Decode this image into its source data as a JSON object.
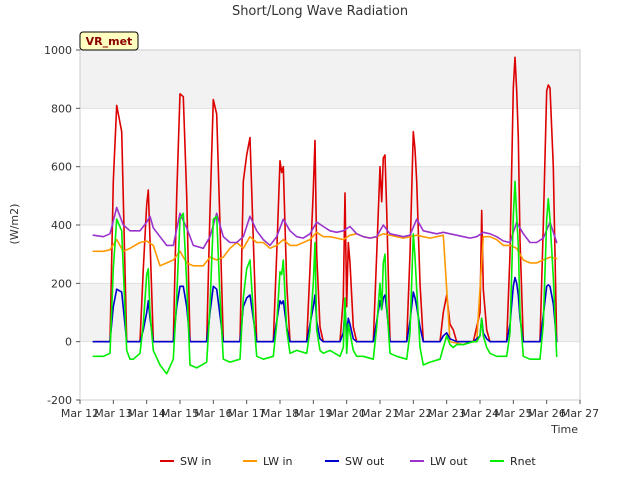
{
  "chart_data": {
    "type": "line",
    "title": "Short/Long Wave Radiation",
    "xlabel": "Time",
    "ylabel": "(W/m2)",
    "station_badge": "VR_met",
    "ylim": [
      -200,
      1000
    ],
    "yticks": [
      -200,
      0,
      200,
      400,
      600,
      800,
      1000
    ],
    "xlim": [
      12,
      27
    ],
    "xticks": [
      12,
      13,
      14,
      15,
      16,
      17,
      18,
      19,
      20,
      21,
      22,
      23,
      24,
      25,
      26,
      27
    ],
    "xtick_labels": [
      "Mar 12",
      "Mar 13",
      "Mar 14",
      "Mar 15",
      "Mar 16",
      "Mar 17",
      "Mar 18",
      "Mar 19",
      "Mar 20",
      "Mar 21",
      "Mar 22",
      "Mar 23",
      "Mar 24",
      "Mar 25",
      "Mar 26",
      "Mar 27"
    ],
    "grid": "horizontal bands",
    "legend_position": "bottom",
    "series": [
      {
        "name": "SW in",
        "color": "#dd0000",
        "x": [
          12.4,
          12.9,
          13.0,
          13.1,
          13.25,
          13.4,
          13.5,
          13.6,
          13.8,
          13.9,
          14.0,
          14.05,
          14.1,
          14.2,
          14.3,
          14.5,
          14.8,
          14.9,
          15.0,
          15.1,
          15.2,
          15.3,
          15.5,
          15.8,
          15.9,
          16.0,
          16.1,
          16.2,
          16.3,
          16.5,
          16.8,
          16.9,
          17.0,
          17.1,
          17.2,
          17.3,
          17.5,
          17.8,
          17.9,
          18.0,
          18.05,
          18.1,
          18.2,
          18.3,
          18.5,
          18.8,
          18.9,
          19.0,
          19.05,
          19.1,
          19.2,
          19.3,
          19.5,
          19.8,
          19.9,
          19.95,
          20.0,
          20.05,
          20.1,
          20.2,
          20.3,
          20.5,
          20.8,
          20.9,
          21.0,
          21.05,
          21.1,
          21.15,
          21.2,
          21.3,
          21.5,
          21.8,
          21.9,
          22.0,
          22.05,
          22.1,
          22.2,
          22.3,
          22.5,
          22.8,
          22.9,
          23.0,
          23.1,
          23.2,
          23.3,
          23.5,
          23.8,
          23.9,
          24.0,
          24.05,
          24.1,
          24.2,
          24.3,
          24.5,
          24.8,
          24.9,
          25.0,
          25.05,
          25.1,
          25.15,
          25.2,
          25.3,
          25.5,
          25.8,
          25.9,
          26.0,
          26.05,
          26.1,
          26.2,
          26.3
        ],
        "values": [
          0,
          0,
          550,
          810,
          720,
          0,
          0,
          0,
          0,
          250,
          470,
          520,
          350,
          0,
          0,
          0,
          0,
          500,
          850,
          840,
          500,
          0,
          0,
          0,
          450,
          830,
          780,
          400,
          0,
          0,
          0,
          550,
          640,
          700,
          350,
          0,
          0,
          0,
          300,
          620,
          580,
          600,
          200,
          0,
          0,
          0,
          250,
          520,
          690,
          300,
          50,
          0,
          0,
          0,
          150,
          510,
          120,
          340,
          270,
          50,
          0,
          0,
          0,
          300,
          600,
          480,
          630,
          640,
          450,
          0,
          0,
          0,
          300,
          720,
          660,
          550,
          200,
          0,
          0,
          0,
          100,
          160,
          60,
          40,
          0,
          0,
          0,
          50,
          100,
          450,
          180,
          40,
          0,
          0,
          0,
          300,
          870,
          975,
          860,
          700,
          350,
          0,
          0,
          0,
          400,
          860,
          880,
          870,
          600,
          0
        ]
      },
      {
        "name": "LW in",
        "color": "#ff9900",
        "x": [
          12.4,
          12.7,
          12.9,
          13.1,
          13.3,
          13.5,
          13.8,
          14.0,
          14.2,
          14.4,
          14.6,
          14.8,
          15.0,
          15.2,
          15.4,
          15.7,
          15.9,
          16.1,
          16.3,
          16.5,
          16.7,
          16.9,
          17.1,
          17.3,
          17.5,
          17.7,
          17.9,
          18.1,
          18.3,
          18.5,
          18.7,
          18.9,
          19.1,
          19.3,
          19.5,
          19.7,
          19.9,
          20.1,
          20.3,
          20.5,
          20.7,
          20.9,
          21.1,
          21.3,
          21.5,
          21.7,
          21.9,
          22.1,
          22.3,
          22.5,
          22.7,
          22.9,
          23.1,
          23.3,
          23.5,
          23.7,
          23.9,
          24.1,
          24.3,
          24.5,
          24.7,
          24.9,
          25.1,
          25.3,
          25.5,
          25.7,
          25.9,
          26.1,
          26.3
        ],
        "values": [
          310,
          310,
          315,
          350,
          310,
          320,
          340,
          345,
          330,
          260,
          270,
          280,
          310,
          270,
          260,
          260,
          290,
          280,
          290,
          320,
          340,
          320,
          360,
          340,
          340,
          320,
          330,
          350,
          330,
          330,
          340,
          350,
          375,
          360,
          360,
          355,
          350,
          365,
          370,
          360,
          355,
          360,
          370,
          365,
          360,
          355,
          360,
          365,
          360,
          355,
          360,
          365,
          0,
          -5,
          -10,
          0,
          0,
          360,
          360,
          350,
          330,
          330,
          320,
          280,
          270,
          270,
          280,
          290,
          285
        ]
      },
      {
        "name": "SW out",
        "color": "#0000cc",
        "x": [
          12.4,
          12.9,
          13.0,
          13.1,
          13.25,
          13.4,
          13.5,
          13.6,
          13.8,
          13.9,
          14.0,
          14.05,
          14.1,
          14.2,
          14.3,
          14.5,
          14.8,
          14.9,
          15.0,
          15.1,
          15.2,
          15.3,
          15.5,
          15.8,
          15.9,
          16.0,
          16.1,
          16.2,
          16.3,
          16.5,
          16.8,
          16.9,
          17.0,
          17.1,
          17.2,
          17.3,
          17.5,
          17.8,
          17.9,
          18.0,
          18.05,
          18.1,
          18.2,
          18.3,
          18.5,
          18.8,
          18.9,
          19.0,
          19.05,
          19.1,
          19.2,
          19.3,
          19.5,
          19.8,
          19.9,
          19.95,
          20.0,
          20.05,
          20.1,
          20.2,
          20.3,
          20.5,
          20.8,
          20.9,
          21.0,
          21.05,
          21.1,
          21.15,
          21.2,
          21.3,
          21.5,
          21.8,
          21.9,
          22.0,
          22.05,
          22.1,
          22.2,
          22.3,
          22.5,
          22.8,
          22.9,
          23.0,
          23.1,
          23.2,
          23.3,
          23.5,
          23.8,
          23.9,
          24.0,
          24.05,
          24.1,
          24.2,
          24.3,
          24.5,
          24.8,
          24.9,
          25.0,
          25.05,
          25.1,
          25.15,
          25.2,
          25.3,
          25.5,
          25.8,
          25.9,
          26.0,
          26.05,
          26.1,
          26.2,
          26.3
        ],
        "values": [
          0,
          0,
          120,
          180,
          170,
          0,
          0,
          0,
          0,
          40,
          100,
          140,
          80,
          0,
          0,
          0,
          0,
          120,
          190,
          190,
          120,
          0,
          0,
          0,
          100,
          190,
          180,
          90,
          0,
          0,
          0,
          120,
          150,
          160,
          80,
          0,
          0,
          0,
          70,
          140,
          130,
          140,
          50,
          0,
          0,
          0,
          60,
          120,
          160,
          70,
          10,
          0,
          0,
          0,
          30,
          110,
          30,
          80,
          60,
          10,
          0,
          0,
          0,
          70,
          140,
          110,
          150,
          160,
          110,
          0,
          0,
          0,
          70,
          170,
          150,
          120,
          50,
          0,
          0,
          0,
          20,
          30,
          10,
          5,
          0,
          0,
          0,
          10,
          20,
          80,
          30,
          10,
          0,
          0,
          0,
          60,
          190,
          220,
          200,
          160,
          80,
          0,
          0,
          0,
          90,
          190,
          195,
          190,
          130,
          0
        ]
      },
      {
        "name": "LW out",
        "color": "#9933cc",
        "x": [
          12.4,
          12.7,
          12.9,
          13.1,
          13.3,
          13.5,
          13.8,
          14.0,
          14.1,
          14.2,
          14.4,
          14.6,
          14.8,
          15.0,
          15.2,
          15.4,
          15.7,
          15.9,
          16.1,
          16.3,
          16.5,
          16.7,
          16.9,
          17.1,
          17.3,
          17.5,
          17.7,
          17.9,
          18.1,
          18.3,
          18.5,
          18.7,
          18.9,
          19.1,
          19.3,
          19.5,
          19.7,
          19.9,
          20.1,
          20.3,
          20.5,
          20.7,
          20.9,
          21.1,
          21.3,
          21.5,
          21.7,
          21.9,
          22.1,
          22.3,
          22.5,
          22.7,
          22.9,
          23.1,
          23.3,
          23.5,
          23.7,
          23.9,
          24.1,
          24.3,
          24.5,
          24.7,
          24.9,
          25.1,
          25.3,
          25.5,
          25.7,
          25.9,
          26.1,
          26.3
        ],
        "values": [
          365,
          360,
          370,
          460,
          400,
          380,
          380,
          410,
          430,
          390,
          360,
          330,
          330,
          440,
          390,
          330,
          320,
          360,
          440,
          360,
          340,
          340,
          360,
          430,
          380,
          350,
          330,
          360,
          420,
          380,
          360,
          355,
          370,
          410,
          395,
          380,
          375,
          380,
          395,
          370,
          360,
          355,
          360,
          400,
          370,
          365,
          360,
          365,
          420,
          380,
          375,
          370,
          375,
          370,
          365,
          360,
          355,
          360,
          375,
          370,
          360,
          345,
          340,
          410,
          370,
          340,
          340,
          355,
          410,
          340
        ]
      },
      {
        "name": "Rnet",
        "color": "#00ee00",
        "x": [
          12.4,
          12.7,
          12.9,
          13.0,
          13.1,
          13.25,
          13.4,
          13.5,
          13.6,
          13.8,
          13.9,
          14.0,
          14.05,
          14.1,
          14.2,
          14.4,
          14.6,
          14.8,
          14.9,
          15.0,
          15.1,
          15.2,
          15.3,
          15.5,
          15.8,
          15.9,
          16.0,
          16.1,
          16.2,
          16.3,
          16.5,
          16.8,
          16.9,
          17.0,
          17.1,
          17.2,
          17.3,
          17.5,
          17.8,
          17.9,
          18.0,
          18.05,
          18.1,
          18.2,
          18.3,
          18.5,
          18.8,
          18.9,
          19.0,
          19.05,
          19.1,
          19.2,
          19.3,
          19.5,
          19.8,
          19.9,
          19.95,
          20.0,
          20.05,
          20.1,
          20.2,
          20.3,
          20.5,
          20.8,
          20.9,
          21.0,
          21.05,
          21.1,
          21.15,
          21.2,
          21.3,
          21.5,
          21.8,
          21.9,
          22.0,
          22.05,
          22.1,
          22.2,
          22.3,
          22.5,
          22.8,
          22.9,
          23.0,
          23.1,
          23.2,
          23.3,
          23.5,
          23.8,
          23.9,
          24.0,
          24.05,
          24.1,
          24.2,
          24.3,
          24.5,
          24.8,
          24.9,
          25.0,
          25.05,
          25.1,
          25.15,
          25.2,
          25.3,
          25.5,
          25.8,
          25.9,
          26.0,
          26.05,
          26.1,
          26.2,
          26.3
        ],
        "values": [
          -50,
          -50,
          -40,
          250,
          420,
          380,
          -30,
          -60,
          -60,
          -40,
          60,
          230,
          250,
          100,
          -30,
          -80,
          -110,
          -60,
          150,
          420,
          440,
          200,
          -80,
          -90,
          -70,
          120,
          420,
          430,
          150,
          -60,
          -70,
          -60,
          150,
          250,
          280,
          100,
          -50,
          -60,
          -50,
          60,
          240,
          230,
          280,
          40,
          -40,
          -30,
          -40,
          40,
          200,
          340,
          40,
          -30,
          -40,
          -30,
          -50,
          -20,
          150,
          -40,
          60,
          30,
          -30,
          -50,
          -50,
          -60,
          50,
          200,
          110,
          270,
          300,
          130,
          -40,
          -50,
          -60,
          30,
          370,
          290,
          180,
          -20,
          -80,
          -70,
          -60,
          -20,
          20,
          -10,
          -20,
          -10,
          -10,
          0,
          0,
          20,
          80,
          20,
          -20,
          -40,
          -50,
          -50,
          30,
          430,
          550,
          430,
          330,
          100,
          -50,
          -60,
          -60,
          60,
          420,
          490,
          420,
          220,
          -50
        ]
      }
    ]
  }
}
